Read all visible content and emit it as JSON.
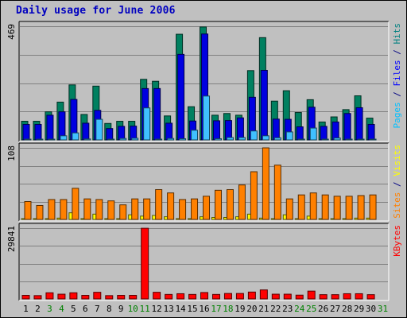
{
  "chart_data": {
    "title": "Daily usage for June 2006",
    "type": "bar",
    "days": [
      "1",
      "2",
      "3",
      "4",
      "5",
      "6",
      "7",
      "8",
      "9",
      "10",
      "11",
      "12",
      "13",
      "14",
      "15",
      "16",
      "17",
      "18",
      "19",
      "20",
      "21",
      "22",
      "23",
      "24",
      "25",
      "26",
      "27",
      "28",
      "29",
      "30",
      "31"
    ],
    "weekend_days": [
      "3",
      "4",
      "10",
      "11",
      "17",
      "18",
      "24",
      "25",
      "31"
    ],
    "panels": [
      {
        "id": "pages-files-hits",
        "ymax": 469,
        "ymax_label": "469",
        "side_label": [
          {
            "text": "Pages",
            "color": "#00c0ff"
          },
          {
            "text": " / ",
            "color": "#000080"
          },
          {
            "text": "Files",
            "color": "#0000ff"
          },
          {
            "text": " / ",
            "color": "#000080"
          },
          {
            "text": "Hits",
            "color": "#008080"
          }
        ],
        "series": [
          {
            "name": "Hits",
            "color": "#008060",
            "values": [
              77,
              77,
              116,
              156,
              227,
              105,
              222,
              68,
              77,
              77,
              250,
              242,
              99,
              436,
              137,
              466,
              102,
              109,
              102,
              286,
              422,
              160,
              203,
              113,
              166,
              74,
              95,
              125,
              182,
              90,
              0
            ]
          },
          {
            "name": "Files",
            "color": "#0000e0",
            "values": [
              64,
              64,
              102,
              116,
              167,
              69,
              122,
              47,
              56,
              57,
              212,
              212,
              69,
              353,
              78,
              437,
              79,
              80,
              91,
              176,
              287,
              86,
              85,
              54,
              135,
              56,
              74,
              109,
              133,
              64,
              0
            ]
          },
          {
            "name": "Pages",
            "color": "#40c0ff",
            "values": [
              3,
              1,
              1,
              17,
              29,
              4,
              85,
              3,
              6,
              7,
              132,
              3,
              6,
              5,
              40,
              181,
              5,
              10,
              10,
              37,
              17,
              9,
              33,
              3,
              49,
              3,
              8,
              2,
              1,
              3,
              0
            ]
          }
        ]
      },
      {
        "id": "sites-visits",
        "ymax": 108,
        "ymax_label": "108",
        "side_label": [
          {
            "text": "Sites",
            "color": "#ff8000"
          },
          {
            "text": " / ",
            "color": "#000080"
          },
          {
            "text": "Visits",
            "color": "#ffff00"
          }
        ],
        "series": [
          {
            "name": "Visits",
            "color": "#ffff00",
            "values": [
              1,
              1,
              1,
              2,
              10,
              1,
              8,
              1,
              1,
              7,
              5,
              6,
              4,
              1,
              1,
              4,
              3,
              3,
              4,
              8,
              2,
              1,
              7,
              1,
              5,
              1,
              1,
              1,
              2,
              2,
              0
            ]
          },
          {
            "name": "Sites",
            "color": "#ff8000",
            "values": [
              27,
              21,
              30,
              30,
              47,
              31,
              30,
              28,
              22,
              31,
              31,
              45,
              40,
              30,
              31,
              35,
              44,
              45,
              52,
              72,
              108,
              82,
              31,
              37,
              40,
              37,
              35,
              35,
              36,
              37,
              0
            ]
          }
        ]
      },
      {
        "id": "kbytes",
        "ymax": 29841,
        "ymax_label": "29841",
        "side_label": [
          {
            "text": "KBytes",
            "color": "#ff0000"
          }
        ],
        "series": [
          {
            "name": "KBytes",
            "color": "#ff0000",
            "values": [
              1500,
              1400,
              2600,
              2000,
              2600,
              1500,
              2800,
              1400,
              1500,
              1500,
              29800,
              2800,
              1900,
              2200,
              1900,
              2700,
              1900,
              2300,
              2300,
              2900,
              3800,
              2000,
              2000,
              1600,
              3300,
              1800,
              1800,
              2200,
              2200,
              1800,
              0
            ]
          }
        ]
      }
    ],
    "colors": {
      "background": "#c0c0c0",
      "title": "#0000c0",
      "weekday_label": "#000000",
      "weekend_label": "#008000",
      "frame_dark": "#000000",
      "frame_light": "#ffffff",
      "gridline": "#808080"
    }
  }
}
